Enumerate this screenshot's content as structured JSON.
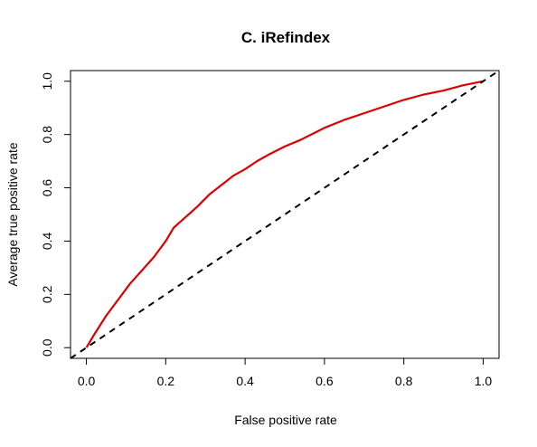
{
  "chart_data": {
    "type": "line",
    "title": "C. iRefindex",
    "xlabel": "False positive rate",
    "ylabel": "Average true positive rate",
    "xlim": [
      -0.04,
      1.04
    ],
    "ylim": [
      -0.04,
      1.04
    ],
    "x_ticks": [
      "0.0",
      "0.2",
      "0.4",
      "0.6",
      "0.8",
      "1.0"
    ],
    "y_ticks": [
      "0.0",
      "0.2",
      "0.4",
      "0.6",
      "0.8",
      "1.0"
    ],
    "grid": false,
    "legend": "none",
    "series": [
      {
        "color": "#dd0000",
        "style": "solid",
        "x": [
          0.0,
          0.02,
          0.05,
          0.08,
          0.11,
          0.14,
          0.17,
          0.2,
          0.22,
          0.25,
          0.28,
          0.31,
          0.34,
          0.37,
          0.4,
          0.43,
          0.46,
          0.5,
          0.54,
          0.58,
          0.6,
          0.65,
          0.7,
          0.75,
          0.8,
          0.85,
          0.9,
          0.95,
          1.0
        ],
        "y": [
          0.0,
          0.05,
          0.12,
          0.18,
          0.24,
          0.29,
          0.34,
          0.4,
          0.45,
          0.49,
          0.53,
          0.575,
          0.61,
          0.645,
          0.67,
          0.7,
          0.725,
          0.755,
          0.78,
          0.81,
          0.825,
          0.855,
          0.88,
          0.905,
          0.93,
          0.95,
          0.965,
          0.985,
          1.0
        ]
      },
      {
        "color": "#000000",
        "style": "dashed",
        "x": [
          -0.04,
          1.04
        ],
        "y": [
          -0.04,
          1.04
        ]
      }
    ]
  }
}
